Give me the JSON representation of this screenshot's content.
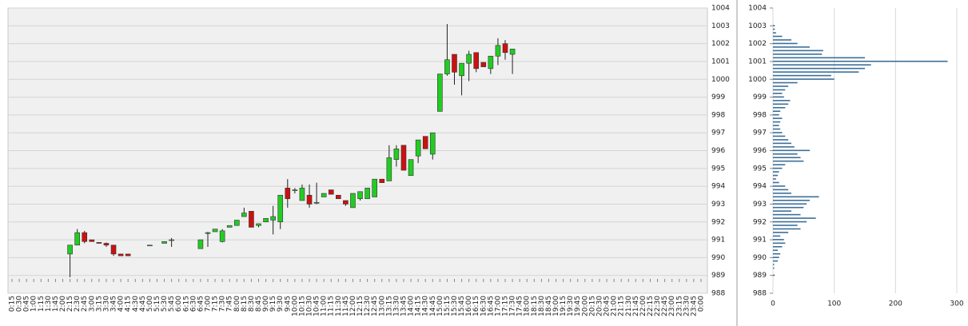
{
  "chart_data": [
    {
      "type": "candlestick",
      "categories": [
        "0:15",
        "0:30",
        "0:45",
        "1:00",
        "1:15",
        "1:30",
        "1:45",
        "2:00",
        "2:15",
        "2:30",
        "2:45",
        "3:00",
        "3:15",
        "3:30",
        "3:45",
        "4:00",
        "4:15",
        "4:30",
        "4:45",
        "5:00",
        "5:15",
        "5:30",
        "5:45",
        "6:00",
        "6:15",
        "6:30",
        "6:45",
        "7:00",
        "7:15",
        "7:30",
        "7:45",
        "8:00",
        "8:15",
        "8:30",
        "8:45",
        "9:00",
        "9:15",
        "9:30",
        "9:45",
        "10:00",
        "10:15",
        "10:30",
        "10:45",
        "11:00",
        "11:15",
        "11:30",
        "11:45",
        "12:00",
        "12:15",
        "12:30",
        "12:45",
        "13:00",
        "13:15",
        "13:30",
        "13:45",
        "14:00",
        "14:15",
        "14:30",
        "14:45",
        "15:00",
        "15:15",
        "15:30",
        "15:45",
        "16:00",
        "16:15",
        "16:30",
        "16:45",
        "17:00",
        "17:15",
        "17:30",
        "17:45",
        "18:00",
        "18:15",
        "18:30",
        "18:45",
        "19:00",
        "19:15",
        "19:30",
        "19:45",
        "20:00",
        "20:15",
        "20:30",
        "20:45",
        "21:00",
        "21:15",
        "21:30",
        "21:45",
        "22:00",
        "22:15",
        "22:30",
        "22:45",
        "23:00",
        "23:15",
        "23:30",
        "23:45",
        "0:00"
      ],
      "open": [
        null,
        null,
        null,
        null,
        null,
        null,
        null,
        null,
        990.2,
        990.7,
        991.4,
        991.0,
        990.85,
        990.8,
        990.7,
        990.2,
        990.2,
        null,
        null,
        990.7,
        null,
        990.8,
        991.0,
        null,
        null,
        null,
        990.5,
        991.35,
        991.45,
        990.9,
        991.7,
        991.8,
        992.3,
        992.6,
        991.8,
        992.0,
        992.1,
        992.0,
        993.9,
        993.8,
        993.2,
        993.5,
        993.05,
        993.4,
        993.8,
        993.5,
        993.2,
        992.8,
        993.3,
        993.3,
        993.4,
        994.4,
        994.3,
        995.5,
        996.3,
        994.6,
        995.7,
        996.8,
        995.8,
        998.2,
        1000.3,
        1001.4,
        1000.2,
        1000.9,
        1001.5,
        1000.95,
        1000.6,
        1001.3,
        1002.0,
        1001.4,
        null,
        null,
        null,
        null,
        null,
        null,
        null,
        null,
        null,
        null,
        null,
        null,
        null,
        null,
        null,
        null,
        null,
        null,
        null,
        null,
        null,
        null,
        null,
        null,
        null,
        null
      ],
      "high": [
        null,
        null,
        null,
        null,
        null,
        null,
        null,
        null,
        990.7,
        991.6,
        991.5,
        991.0,
        990.85,
        990.85,
        990.7,
        990.2,
        990.2,
        null,
        null,
        990.7,
        null,
        990.9,
        991.1,
        null,
        null,
        null,
        991.0,
        991.45,
        991.6,
        991.6,
        991.8,
        992.1,
        992.8,
        992.6,
        991.9,
        992.2,
        992.9,
        993.5,
        994.4,
        993.9,
        994.1,
        994.1,
        994.2,
        993.6,
        993.8,
        993.5,
        993.2,
        993.6,
        993.7,
        993.9,
        994.4,
        994.4,
        996.3,
        996.3,
        996.3,
        995.5,
        996.6,
        996.8,
        997.0,
        1000.3,
        1003.1,
        1001.4,
        1000.9,
        1001.6,
        1001.5,
        1000.95,
        1001.3,
        1002.3,
        1002.2,
        1001.7,
        null,
        null,
        null,
        null,
        null,
        null,
        null,
        null,
        null,
        null,
        null,
        null,
        null,
        null,
        null,
        null,
        null,
        null,
        null,
        null,
        null,
        null,
        null,
        null,
        null,
        null
      ],
      "low": [
        null,
        null,
        null,
        null,
        null,
        null,
        null,
        null,
        988.9,
        990.7,
        990.8,
        990.9,
        990.8,
        990.6,
        990.1,
        990.1,
        990.1,
        null,
        null,
        990.7,
        null,
        990.8,
        990.6,
        null,
        null,
        null,
        990.5,
        990.6,
        991.45,
        990.85,
        991.7,
        991.8,
        992.3,
        991.7,
        991.7,
        992.0,
        991.3,
        991.6,
        992.8,
        993.6,
        993.2,
        992.8,
        993.0,
        993.4,
        993.55,
        993.3,
        992.9,
        992.8,
        993.2,
        993.3,
        993.4,
        994.2,
        994.3,
        995.1,
        994.9,
        994.6,
        995.3,
        996.1,
        995.5,
        998.2,
        1000.2,
        999.7,
        999.1,
        999.9,
        1000.4,
        1000.7,
        1000.3,
        1000.8,
        1001.1,
        1000.3,
        null,
        null,
        null,
        null,
        null,
        null,
        null,
        null,
        null,
        null,
        null,
        null,
        null,
        null,
        null,
        null,
        null,
        null,
        null,
        null,
        null,
        null,
        null,
        null,
        null,
        null
      ],
      "close": [
        null,
        null,
        null,
        null,
        null,
        null,
        null,
        null,
        990.7,
        991.4,
        990.9,
        990.9,
        990.8,
        990.7,
        990.2,
        990.1,
        990.1,
        null,
        null,
        990.7,
        null,
        990.9,
        991.0,
        null,
        null,
        null,
        991.0,
        991.4,
        991.6,
        991.5,
        991.8,
        992.1,
        992.5,
        991.7,
        991.9,
        992.2,
        992.3,
        993.5,
        993.3,
        993.8,
        993.9,
        993.0,
        993.1,
        993.6,
        993.55,
        993.3,
        993.0,
        993.6,
        993.7,
        993.9,
        994.4,
        994.2,
        995.6,
        996.1,
        994.9,
        995.5,
        996.6,
        996.1,
        997.0,
        1000.3,
        1001.1,
        1000.4,
        1000.9,
        1001.4,
        1000.6,
        1000.7,
        1001.3,
        1001.9,
        1001.5,
        1001.7,
        null,
        null,
        null,
        null,
        null,
        null,
        null,
        null,
        null,
        null,
        null,
        null,
        null,
        null,
        null,
        null,
        null,
        null,
        null,
        null,
        null,
        null,
        null,
        null,
        null,
        null
      ],
      "up_color": "#22cc22",
      "down_color": "#cc1111",
      "ylim": [
        988,
        1004
      ],
      "yticks": [
        988,
        989,
        990,
        991,
        992,
        993,
        994,
        995,
        996,
        997,
        998,
        999,
        1000,
        1001,
        1002,
        1003,
        1004
      ],
      "grid": true
    },
    {
      "type": "hbar",
      "levels": [
        989.0,
        989.2,
        989.4,
        989.6,
        989.8,
        990.0,
        990.2,
        990.4,
        990.6,
        990.8,
        991.0,
        991.2,
        991.4,
        991.6,
        991.8,
        992.0,
        992.2,
        992.4,
        992.6,
        992.8,
        993.0,
        993.2,
        993.4,
        993.6,
        993.8,
        994.0,
        994.2,
        994.4,
        994.6,
        994.8,
        995.0,
        995.2,
        995.4,
        995.6,
        995.8,
        996.0,
        996.2,
        996.4,
        996.6,
        996.8,
        997.0,
        997.2,
        997.4,
        997.6,
        997.8,
        998.0,
        998.2,
        998.4,
        998.6,
        998.8,
        999.0,
        999.2,
        999.4,
        999.6,
        999.8,
        1000.0,
        1000.2,
        1000.4,
        1000.6,
        1000.8,
        1001.0,
        1001.2,
        1001.4,
        1001.6,
        1001.8,
        1002.0,
        1002.2,
        1002.4,
        1002.6,
        1002.8,
        1003.0
      ],
      "values": [
        3,
        0,
        2,
        2,
        8,
        10,
        12,
        8,
        15,
        20,
        18,
        12,
        25,
        45,
        40,
        55,
        70,
        45,
        30,
        50,
        55,
        60,
        75,
        30,
        25,
        20,
        10,
        5,
        8,
        10,
        15,
        20,
        50,
        45,
        40,
        60,
        35,
        30,
        25,
        20,
        15,
        12,
        10,
        12,
        15,
        10,
        12,
        20,
        25,
        28,
        18,
        15,
        20,
        25,
        40,
        100,
        95,
        140,
        150,
        160,
        285,
        150,
        80,
        82,
        60,
        40,
        30,
        15,
        5,
        3,
        3
      ],
      "color": "#3d6f99",
      "ylim": [
        988,
        1004
      ],
      "yticks": [
        988,
        989,
        990,
        991,
        992,
        993,
        994,
        995,
        996,
        997,
        998,
        999,
        1000,
        1001,
        1002,
        1003,
        1004
      ],
      "xlim": [
        0,
        300
      ],
      "xticks": [
        0,
        100,
        200,
        300
      ],
      "grid": true
    }
  ]
}
